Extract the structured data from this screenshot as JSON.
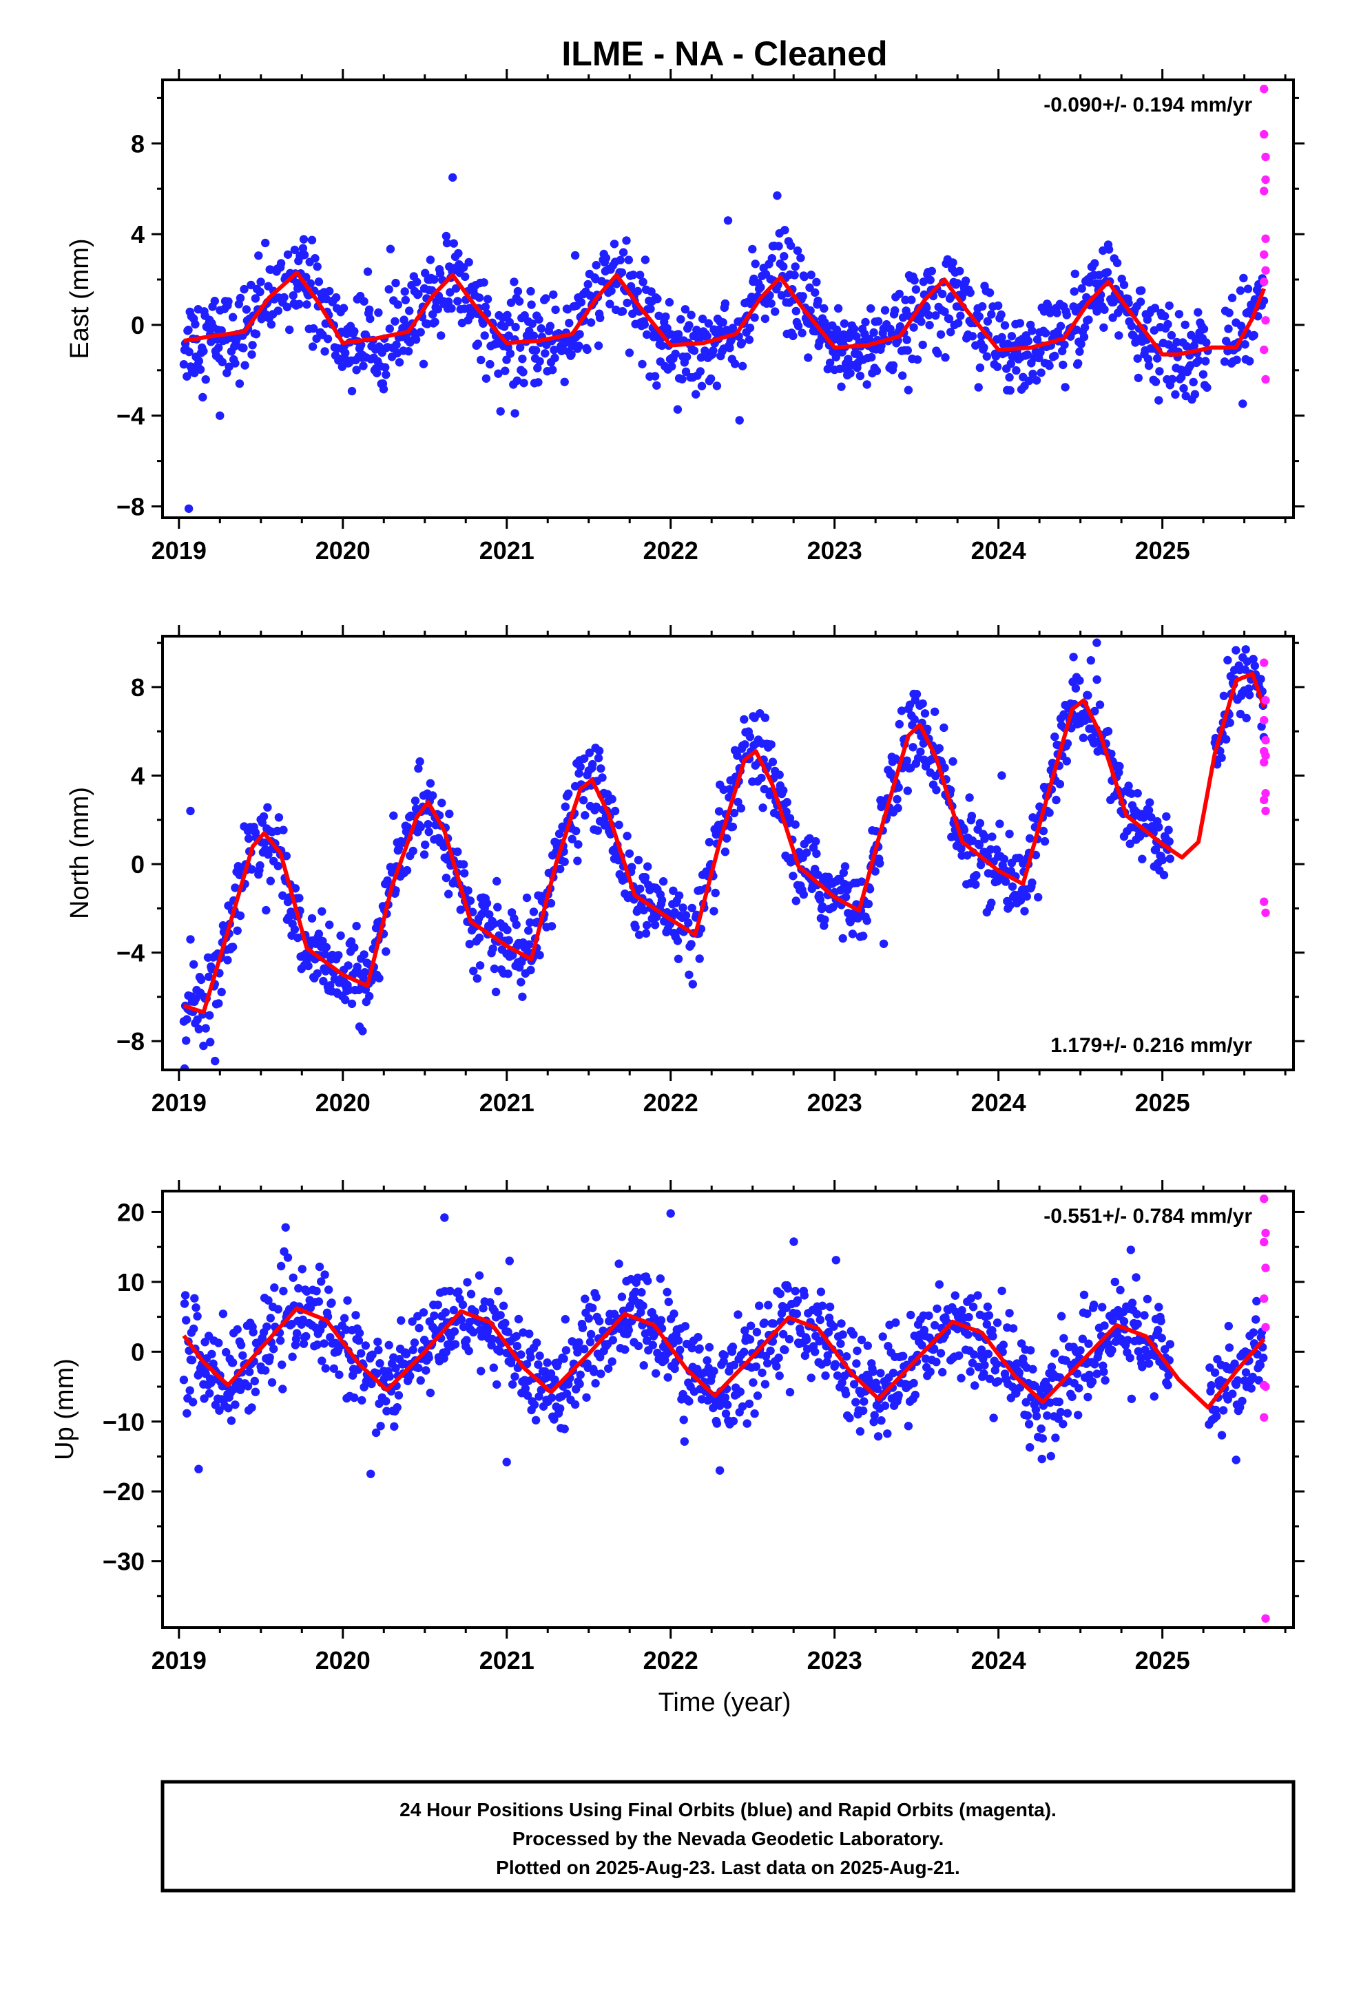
{
  "title": "ILME  - NA - Cleaned",
  "xlabel": "Time (year)",
  "footer": {
    "line1": "24 Hour Positions Using Final Orbits (blue) and Rapid Orbits (magenta).",
    "line2": "Processed by the Nevada Geodetic Laboratory.",
    "line3": "Plotted on 2025-Aug-23. Last data on 2025-Aug-21."
  },
  "colors": {
    "final": "#1f1fff",
    "rapid": "#ff22ff",
    "model": "#ff0000"
  },
  "chart_data": [
    {
      "type": "scatter",
      "ylabel": "East (mm)",
      "rate_label": "-0.090+/- 0.194 mm/yr",
      "rate_position": "top-right",
      "xlim": [
        2018.9,
        2025.8
      ],
      "ylim": [
        -8.5,
        10.8
      ],
      "x_ticks": [
        2019,
        2020,
        2021,
        2022,
        2023,
        2024,
        2025
      ],
      "y_ticks": [
        -8,
        -4,
        0,
        4,
        8
      ],
      "grid": false,
      "model": {
        "name": "seasonal fit",
        "x": [
          2019.03,
          2019.2,
          2019.4,
          2019.55,
          2019.72,
          2019.85,
          2020.0,
          2020.2,
          2020.4,
          2020.55,
          2020.67,
          2020.8,
          2021.0,
          2021.2,
          2021.4,
          2021.55,
          2021.67,
          2021.8,
          2022.0,
          2022.2,
          2022.4,
          2022.55,
          2022.67,
          2022.8,
          2023.0,
          2023.2,
          2023.4,
          2023.55,
          2023.67,
          2023.8,
          2024.0,
          2024.2,
          2024.4,
          2024.55,
          2024.67,
          2024.8,
          2025.0,
          2025.1,
          2025.3,
          2025.45,
          2025.55,
          2025.62
        ],
        "y": [
          -0.7,
          -0.5,
          -0.3,
          1.2,
          2.3,
          1.0,
          -0.8,
          -0.6,
          -0.3,
          1.3,
          2.2,
          0.9,
          -0.8,
          -0.7,
          -0.4,
          1.2,
          2.2,
          0.9,
          -0.9,
          -0.8,
          -0.4,
          1.2,
          2.1,
          0.8,
          -1.0,
          -0.9,
          -0.5,
          1.1,
          2.0,
          0.7,
          -1.1,
          -1.0,
          -0.6,
          1.0,
          1.9,
          0.6,
          -1.3,
          -1.3,
          -1.0,
          -1.0,
          0.3,
          1.6
        ]
      },
      "final_series": {
        "name": "Final Orbits",
        "x_start": 2019.03,
        "x_end": 2025.28,
        "x2_start": 2025.38,
        "x2_end": 2025.62,
        "fit_offset": 0.0,
        "scatter_sd": 1.0,
        "outliers": [
          [
            2019.06,
            -8.1
          ],
          [
            2020.67,
            6.5
          ],
          [
            2021.05,
            -3.9
          ],
          [
            2022.65,
            5.7
          ],
          [
            2022.35,
            4.6
          ],
          [
            2019.25,
            -4.0
          ]
        ]
      },
      "rapid_series": {
        "name": "Rapid Orbits",
        "x": [
          2025.62,
          2025.62,
          2025.63,
          2025.63,
          2025.62,
          2025.63,
          2025.62,
          2025.63,
          2025.62,
          2025.63,
          2025.62,
          2025.63
        ],
        "y": [
          10.4,
          8.4,
          7.4,
          6.4,
          5.9,
          3.8,
          3.1,
          2.4,
          1.9,
          0.2,
          -1.1,
          -2.4
        ]
      }
    },
    {
      "type": "scatter",
      "ylabel": "North (mm)",
      "rate_label": "1.179+/- 0.216 mm/yr",
      "rate_position": "bottom-right",
      "xlim": [
        2018.9,
        2025.8
      ],
      "ylim": [
        -9.3,
        10.3
      ],
      "x_ticks": [
        2019,
        2020,
        2021,
        2022,
        2023,
        2024,
        2025
      ],
      "y_ticks": [
        -8,
        -4,
        0,
        4,
        8
      ],
      "grid": false,
      "model": {
        "name": "seasonal fit",
        "x": [
          2019.03,
          2019.15,
          2019.3,
          2019.45,
          2019.52,
          2019.62,
          2019.78,
          2020.0,
          2020.15,
          2020.3,
          2020.45,
          2020.52,
          2020.62,
          2020.78,
          2021.0,
          2021.15,
          2021.3,
          2021.45,
          2021.52,
          2021.62,
          2021.78,
          2022.0,
          2022.15,
          2022.3,
          2022.45,
          2022.52,
          2022.62,
          2022.78,
          2023.0,
          2023.15,
          2023.3,
          2023.45,
          2023.52,
          2023.62,
          2023.78,
          2024.0,
          2024.15,
          2024.3,
          2024.45,
          2024.52,
          2024.62,
          2024.78,
          2025.0,
          2025.12,
          2025.22,
          2025.32,
          2025.45,
          2025.55,
          2025.62
        ],
        "y": [
          -6.4,
          -6.7,
          -3.0,
          0.8,
          1.4,
          0.5,
          -3.8,
          -5.0,
          -5.5,
          -1.0,
          2.1,
          2.8,
          1.5,
          -2.6,
          -3.7,
          -4.3,
          0.0,
          3.4,
          3.8,
          2.3,
          -1.4,
          -2.5,
          -3.2,
          1.0,
          4.7,
          5.1,
          3.6,
          -0.1,
          -1.5,
          -2.1,
          2.0,
          5.8,
          6.3,
          4.8,
          1.0,
          -0.3,
          -0.9,
          3.1,
          7.0,
          7.4,
          5.9,
          2.2,
          0.9,
          0.3,
          1.0,
          5.0,
          8.3,
          8.6,
          7.1
        ]
      },
      "final_series": {
        "name": "Final Orbits",
        "x_start": 2019.03,
        "x_end": 2025.05,
        "x2_start": 2025.32,
        "x2_end": 2025.62,
        "fit_offset": 0.0,
        "scatter_sd": 0.9,
        "outliers": [
          [
            2019.07,
            2.4
          ],
          [
            2019.07,
            -3.4
          ],
          [
            2024.6,
            10.0
          ],
          [
            2024.02,
            4.0
          ],
          [
            2023.3,
            -3.6
          ],
          [
            2019.22,
            -8.9
          ]
        ]
      },
      "rapid_series": {
        "name": "Rapid Orbits",
        "x": [
          2025.62,
          2025.63,
          2025.62,
          2025.63,
          2025.62,
          2025.63,
          2025.62,
          2025.63,
          2025.62,
          2025.63,
          2025.62,
          2025.63
        ],
        "y": [
          9.1,
          7.4,
          6.5,
          5.6,
          5.1,
          4.9,
          4.6,
          3.2,
          2.9,
          2.4,
          -1.7,
          -2.2
        ]
      }
    },
    {
      "type": "scatter",
      "ylabel": "Up (mm)",
      "rate_label": "-0.551+/- 0.784 mm/yr",
      "rate_position": "top-right",
      "xlim": [
        2018.9,
        2025.8
      ],
      "ylim": [
        -39.5,
        23.0
      ],
      "x_ticks": [
        2019,
        2020,
        2021,
        2022,
        2023,
        2024,
        2025
      ],
      "y_ticks": [
        -30,
        -20,
        -10,
        0,
        10,
        20
      ],
      "grid": false,
      "model": {
        "name": "seasonal fit",
        "x": [
          2019.03,
          2019.15,
          2019.3,
          2019.5,
          2019.72,
          2019.9,
          2020.1,
          2020.27,
          2020.5,
          2020.72,
          2020.9,
          2021.1,
          2021.27,
          2021.5,
          2021.72,
          2021.9,
          2022.1,
          2022.27,
          2022.5,
          2022.72,
          2022.9,
          2023.1,
          2023.27,
          2023.5,
          2023.72,
          2023.9,
          2024.1,
          2024.27,
          2024.5,
          2024.72,
          2024.9,
          2025.1,
          2025.28,
          2025.45,
          2025.62
        ],
        "y": [
          2.3,
          -1.5,
          -4.8,
          0.5,
          6.2,
          4.5,
          -1.8,
          -5.5,
          0.0,
          5.8,
          4.2,
          -2.2,
          -5.8,
          -0.3,
          5.4,
          3.8,
          -2.6,
          -6.3,
          -0.7,
          4.9,
          3.3,
          -3.0,
          -6.8,
          -1.1,
          4.3,
          2.7,
          -3.5,
          -7.2,
          -1.6,
          3.8,
          2.2,
          -4.0,
          -8.0,
          -2.8,
          1.8
        ]
      },
      "final_series": {
        "name": "Final Orbits",
        "x_start": 2019.03,
        "x_end": 2025.05,
        "x2_start": 2025.28,
        "x2_end": 2025.62,
        "fit_offset": 0.0,
        "scatter_sd": 3.5,
        "outliers": [
          [
            2019.12,
            -16.8
          ],
          [
            2020.17,
            -17.5
          ],
          [
            2020.62,
            19.2
          ],
          [
            2022.0,
            19.8
          ],
          [
            2022.3,
            -17.0
          ],
          [
            2025.45,
            -15.5
          ],
          [
            2021.0,
            -15.8
          ]
        ]
      },
      "rapid_series": {
        "name": "Rapid Orbits",
        "x": [
          2025.62,
          2025.63,
          2025.62,
          2025.63,
          2025.62,
          2025.63,
          2025.62,
          2025.63,
          2025.62,
          2025.63
        ],
        "y": [
          21.9,
          17.0,
          15.7,
          12.0,
          7.6,
          3.5,
          -4.8,
          -5.0,
          -9.4,
          -38.2
        ]
      }
    }
  ]
}
